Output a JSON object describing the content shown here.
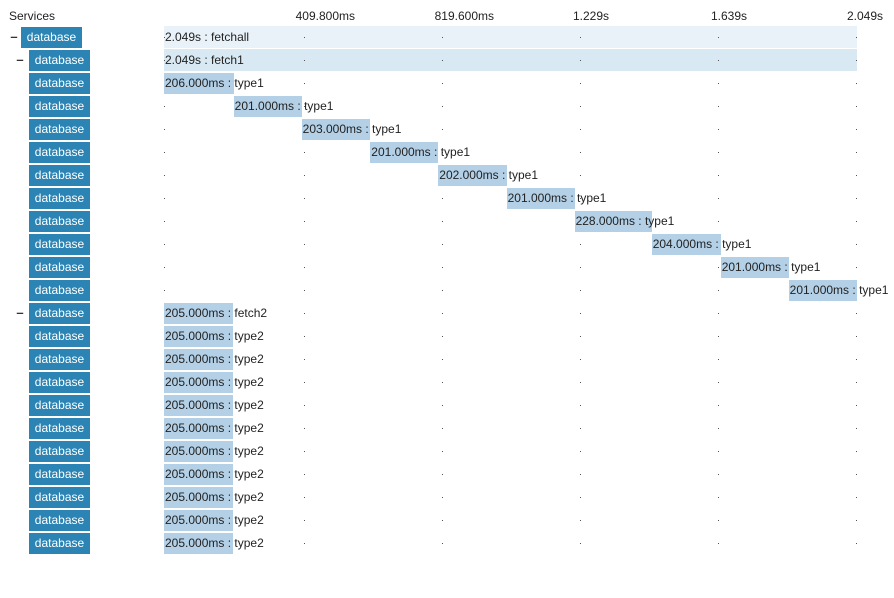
{
  "header": {
    "services_label": "Services",
    "ticks": [
      "409.800ms",
      "819.600ms",
      "1.229s",
      "1.639s",
      "2.049s"
    ]
  },
  "total_duration_ms": 2049,
  "colors": {
    "service_label_bg": "#2b84b4",
    "span_bar": "#b3d0e6",
    "root_track": "#e9f2f9",
    "child_track": "#d8e9f3"
  },
  "spans": [
    {
      "service": "database",
      "depth": 0,
      "toggle": "–",
      "start_ms": 0,
      "duration_ms": 2049,
      "duration_label": "2.049s",
      "name": "fetchall"
    },
    {
      "service": "database",
      "depth": 1,
      "toggle": "–",
      "start_ms": 0,
      "duration_ms": 2049,
      "duration_label": "2.049s",
      "name": "fetch1"
    },
    {
      "service": "database",
      "depth": 2,
      "toggle": "",
      "start_ms": 0,
      "duration_ms": 206,
      "duration_label": "206.000ms",
      "name": "type1"
    },
    {
      "service": "database",
      "depth": 2,
      "toggle": "",
      "start_ms": 206,
      "duration_ms": 201,
      "duration_label": "201.000ms",
      "name": "type1"
    },
    {
      "service": "database",
      "depth": 2,
      "toggle": "",
      "start_ms": 407,
      "duration_ms": 203,
      "duration_label": "203.000ms",
      "name": "type1"
    },
    {
      "service": "database",
      "depth": 2,
      "toggle": "",
      "start_ms": 610,
      "duration_ms": 201,
      "duration_label": "201.000ms",
      "name": "type1"
    },
    {
      "service": "database",
      "depth": 2,
      "toggle": "",
      "start_ms": 811,
      "duration_ms": 202,
      "duration_label": "202.000ms",
      "name": "type1"
    },
    {
      "service": "database",
      "depth": 2,
      "toggle": "",
      "start_ms": 1013,
      "duration_ms": 201,
      "duration_label": "201.000ms",
      "name": "type1"
    },
    {
      "service": "database",
      "depth": 2,
      "toggle": "",
      "start_ms": 1214,
      "duration_ms": 228,
      "duration_label": "228.000ms",
      "name": "type1"
    },
    {
      "service": "database",
      "depth": 2,
      "toggle": "",
      "start_ms": 1442,
      "duration_ms": 204,
      "duration_label": "204.000ms",
      "name": "type1"
    },
    {
      "service": "database",
      "depth": 2,
      "toggle": "",
      "start_ms": 1646,
      "duration_ms": 201,
      "duration_label": "201.000ms",
      "name": "type1"
    },
    {
      "service": "database",
      "depth": 2,
      "toggle": "",
      "start_ms": 1847,
      "duration_ms": 201,
      "duration_label": "201.000ms",
      "name": "type1"
    },
    {
      "service": "database",
      "depth": 1,
      "toggle": "–",
      "start_ms": 0,
      "duration_ms": 205,
      "duration_label": "205.000ms",
      "name": "fetch2"
    },
    {
      "service": "database",
      "depth": 2,
      "toggle": "",
      "start_ms": 0,
      "duration_ms": 205,
      "duration_label": "205.000ms",
      "name": "type2"
    },
    {
      "service": "database",
      "depth": 2,
      "toggle": "",
      "start_ms": 0,
      "duration_ms": 205,
      "duration_label": "205.000ms",
      "name": "type2"
    },
    {
      "service": "database",
      "depth": 2,
      "toggle": "",
      "start_ms": 0,
      "duration_ms": 205,
      "duration_label": "205.000ms",
      "name": "type2"
    },
    {
      "service": "database",
      "depth": 2,
      "toggle": "",
      "start_ms": 0,
      "duration_ms": 205,
      "duration_label": "205.000ms",
      "name": "type2"
    },
    {
      "service": "database",
      "depth": 2,
      "toggle": "",
      "start_ms": 0,
      "duration_ms": 205,
      "duration_label": "205.000ms",
      "name": "type2"
    },
    {
      "service": "database",
      "depth": 2,
      "toggle": "",
      "start_ms": 0,
      "duration_ms": 205,
      "duration_label": "205.000ms",
      "name": "type2"
    },
    {
      "service": "database",
      "depth": 2,
      "toggle": "",
      "start_ms": 0,
      "duration_ms": 205,
      "duration_label": "205.000ms",
      "name": "type2"
    },
    {
      "service": "database",
      "depth": 2,
      "toggle": "",
      "start_ms": 0,
      "duration_ms": 205,
      "duration_label": "205.000ms",
      "name": "type2"
    },
    {
      "service": "database",
      "depth": 2,
      "toggle": "",
      "start_ms": 0,
      "duration_ms": 205,
      "duration_label": "205.000ms",
      "name": "type2"
    },
    {
      "service": "database",
      "depth": 2,
      "toggle": "",
      "start_ms": 0,
      "duration_ms": 205,
      "duration_label": "205.000ms",
      "name": "type2"
    }
  ]
}
